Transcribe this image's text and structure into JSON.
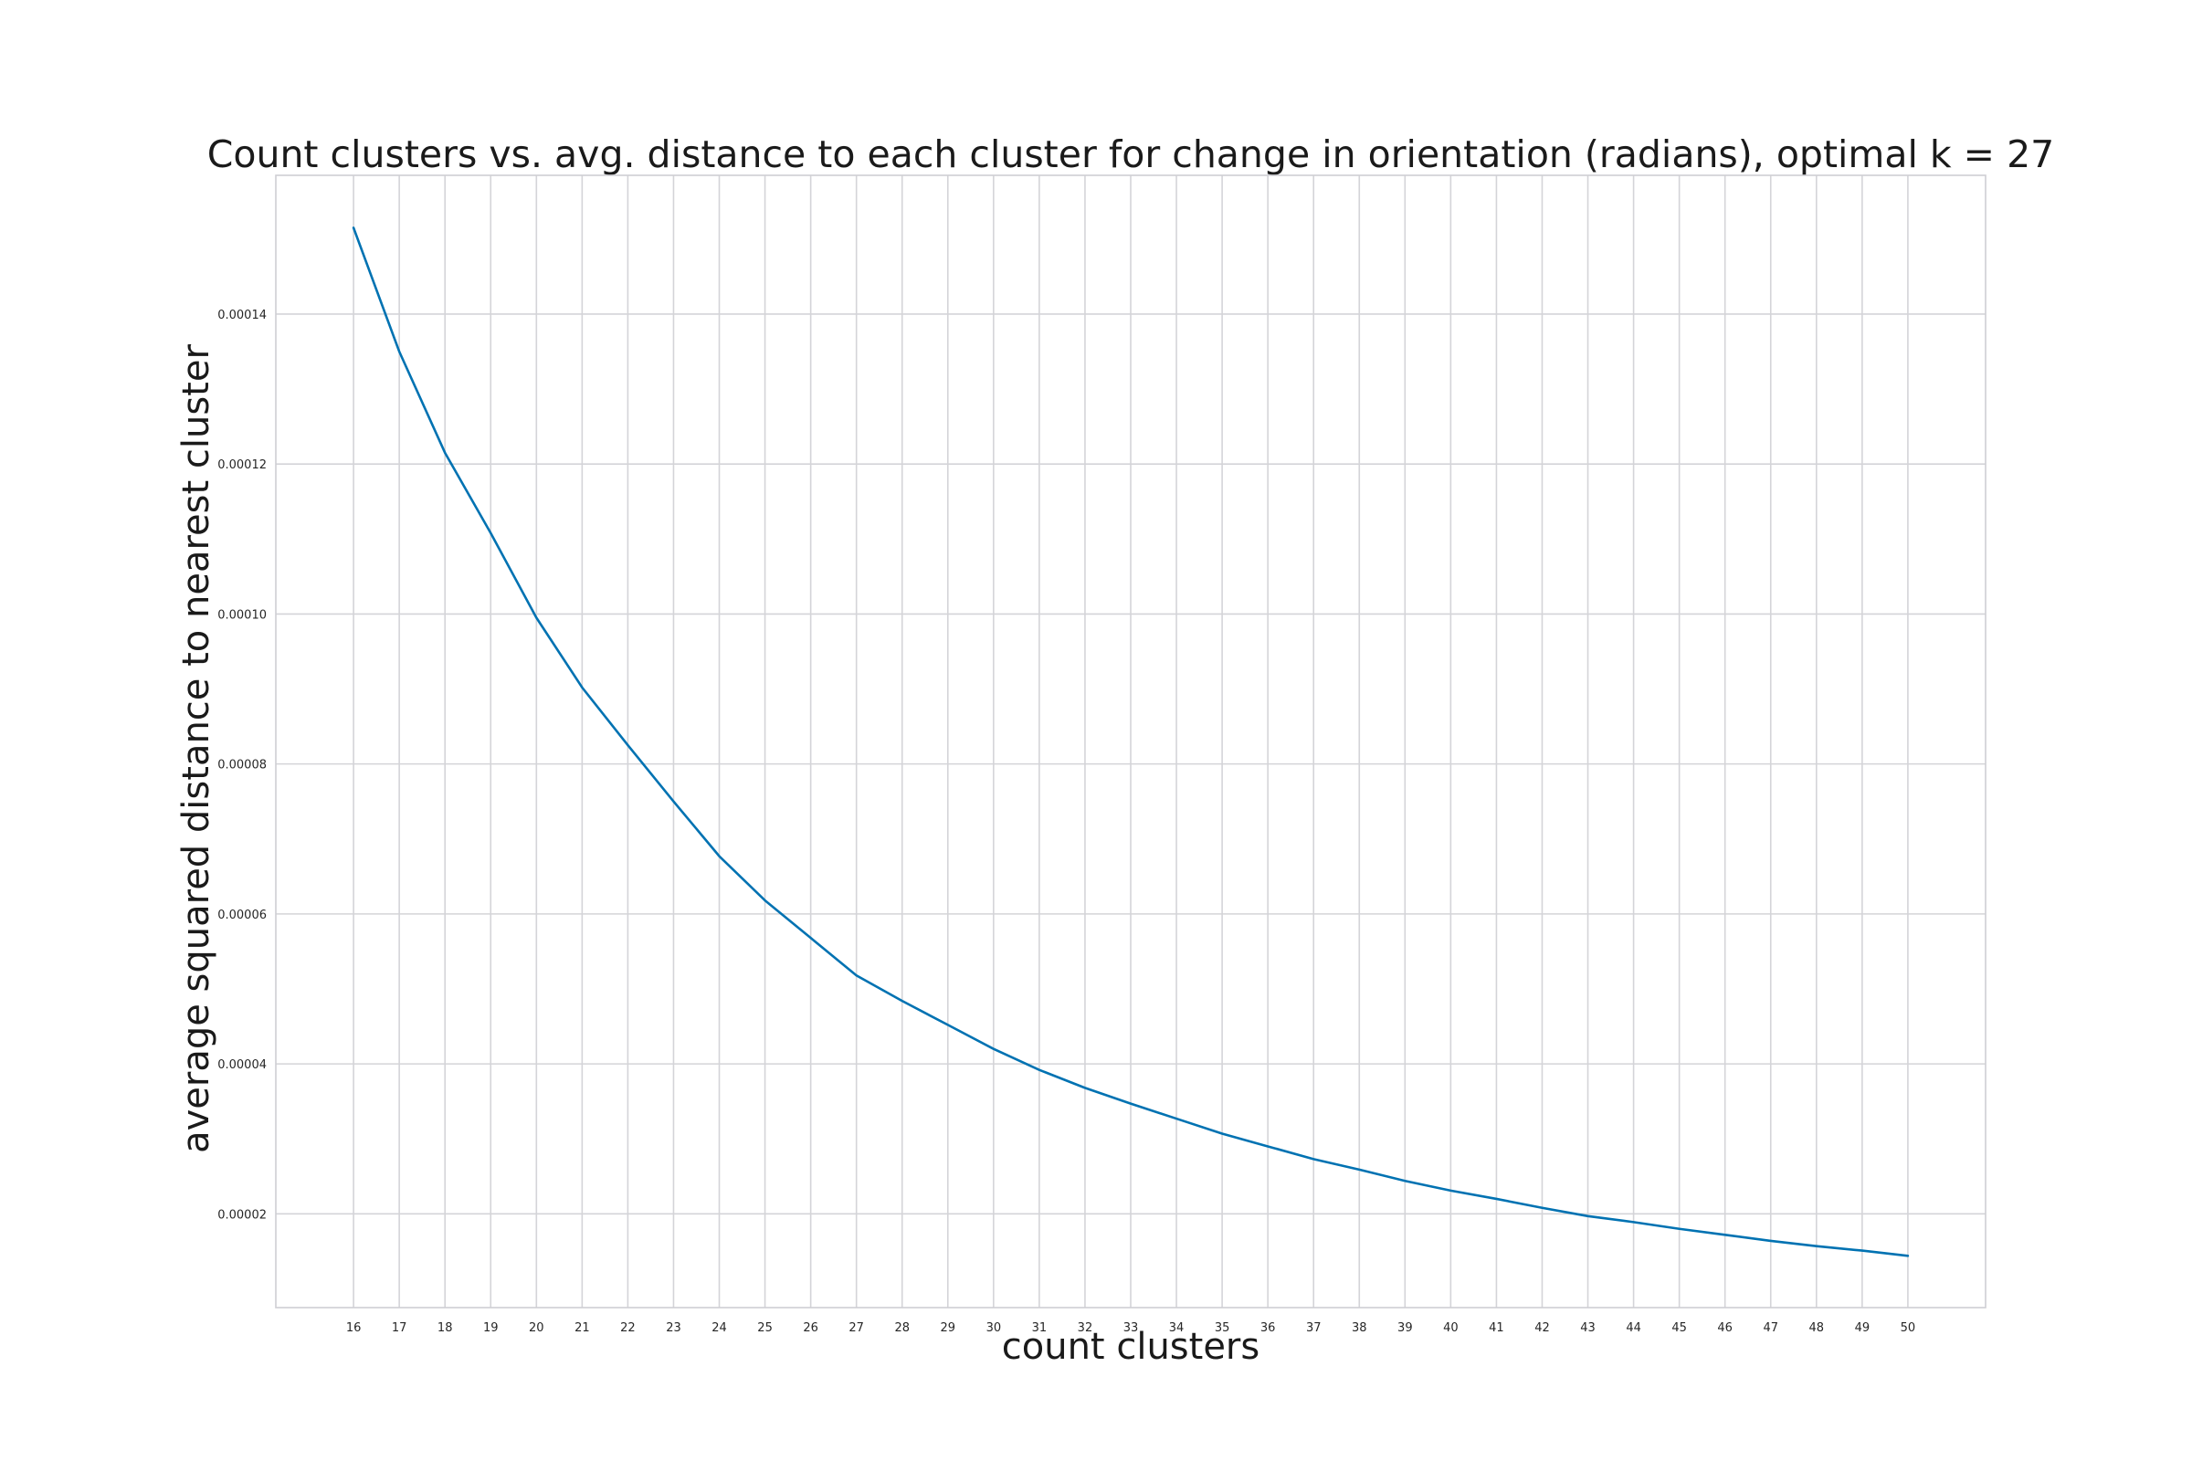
{
  "chart_data": {
    "type": "line",
    "title": "Count clusters vs. avg. distance to each cluster for change in orientation (radians), optimal k = 27",
    "xlabel": "count clusters",
    "ylabel": "average squared distance to nearest cluster",
    "x": [
      16,
      17,
      18,
      19,
      20,
      21,
      22,
      23,
      24,
      25,
      26,
      27,
      28,
      29,
      30,
      31,
      32,
      33,
      34,
      35,
      36,
      37,
      38,
      39,
      40,
      41,
      42,
      43,
      44,
      45,
      46,
      47,
      48,
      49,
      50
    ],
    "series": [
      {
        "values": [
          0.0001515,
          0.000135,
          0.0001215,
          0.0001108,
          9.95e-05,
          9.02e-05,
          8.25e-05,
          7.5e-05,
          6.77e-05,
          6.18e-05,
          5.68e-05,
          5.18e-05,
          4.84e-05,
          4.52e-05,
          4.2e-05,
          3.92e-05,
          3.68e-05,
          3.47e-05,
          3.27e-05,
          3.07e-05,
          2.9e-05,
          2.73e-05,
          2.59e-05,
          2.44e-05,
          2.31e-05,
          2.2e-05,
          2.08e-05,
          1.97e-05,
          1.89e-05,
          1.8e-05,
          1.72e-05,
          1.64e-05,
          1.57e-05,
          1.51e-05,
          1.44e-05
        ],
        "color": "#0072b2"
      }
    ],
    "xticks": [
      "16",
      "17",
      "18",
      "19",
      "20",
      "21",
      "22",
      "23",
      "24",
      "25",
      "26",
      "27",
      "28",
      "29",
      "30",
      "31",
      "32",
      "33",
      "34",
      "35",
      "36",
      "37",
      "38",
      "39",
      "40",
      "41",
      "42",
      "43",
      "44",
      "45",
      "46",
      "47",
      "48",
      "49",
      "50"
    ],
    "yticks": [
      {
        "value": 2e-05,
        "label": "0.00002"
      },
      {
        "value": 4e-05,
        "label": "0.00004"
      },
      {
        "value": 6e-05,
        "label": "0.00006"
      },
      {
        "value": 8e-05,
        "label": "0.00008"
      },
      {
        "value": 0.0001,
        "label": "0.00010"
      },
      {
        "value": 0.00012,
        "label": "0.00012"
      },
      {
        "value": 0.00014,
        "label": "0.00014"
      }
    ],
    "xlim": [
      14.3,
      51.7
    ],
    "ylim": [
      7.5e-06,
      0.0001585
    ],
    "grid": true,
    "legend": "none"
  }
}
